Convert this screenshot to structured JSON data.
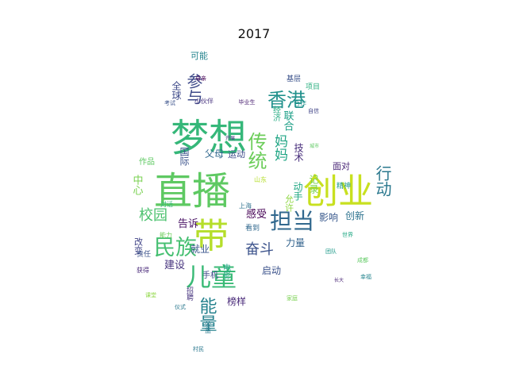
{
  "title": "2017",
  "words": [
    {
      "text": "梦想",
      "color": "#35b779"
    },
    {
      "text": "直播",
      "color": "#5ec962"
    },
    {
      "text": "创业",
      "color": "#c8e020"
    },
    {
      "text": "带",
      "color": "#b5de2b"
    },
    {
      "text": "儿童",
      "color": "#3aba76"
    },
    {
      "text": "民族",
      "color": "#44bf70"
    },
    {
      "text": "担当",
      "color": "#31688e"
    },
    {
      "text": "香港",
      "color": "#21918c"
    },
    {
      "text": "传统",
      "color": "#6ccd5a"
    },
    {
      "text": "参与",
      "color": "#3e4a89"
    },
    {
      "text": "能量",
      "color": "#26828e"
    },
    {
      "text": "奋斗",
      "color": "#3b528b"
    },
    {
      "text": "行动",
      "color": "#2a788e"
    },
    {
      "text": "校园",
      "color": "#4ac16d"
    },
    {
      "text": "妈妈",
      "color": "#21a685"
    },
    {
      "text": "父母",
      "color": "#31688e"
    },
    {
      "text": "运动",
      "color": "#3e4a89"
    },
    {
      "text": "中心",
      "color": "#7ad151"
    },
    {
      "text": "国际",
      "color": "#3b528b"
    },
    {
      "text": "全球",
      "color": "#3e4a89"
    },
    {
      "text": "可能",
      "color": "#25848e"
    },
    {
      "text": "技术",
      "color": "#472d7b"
    },
    {
      "text": "感受",
      "color": "#440154"
    },
    {
      "text": "告诉",
      "color": "#471063"
    },
    {
      "text": "就业",
      "color": "#39568c"
    },
    {
      "text": "建设",
      "color": "#46337e"
    },
    {
      "text": "影响",
      "color": "#38588c"
    },
    {
      "text": "创新",
      "color": "#2c728e"
    },
    {
      "text": "力量",
      "color": "#33638d"
    },
    {
      "text": "启动",
      "color": "#3b528b"
    },
    {
      "text": "榜样",
      "color": "#482878"
    },
    {
      "text": "面对",
      "color": "#482475"
    },
    {
      "text": "作品",
      "color": "#5ec962"
    },
    {
      "text": "改变",
      "color": "#414487"
    },
    {
      "text": "手机",
      "color": "#3e4a89"
    },
    {
      "text": "公益",
      "color": "#2a788e"
    },
    {
      "text": "联合",
      "color": "#1fa088"
    },
    {
      "text": "经济",
      "color": "#25ab82"
    },
    {
      "text": "动手",
      "color": "#22a884"
    },
    {
      "text": "项目",
      "color": "#29af7f"
    },
    {
      "text": "基层",
      "color": "#3b528b"
    },
    {
      "text": "小伙伴",
      "color": "#46327e"
    },
    {
      "text": "毕业生",
      "color": "#481f70"
    },
    {
      "text": "允许",
      "color": "#8fd744"
    },
    {
      "text": "上海",
      "color": "#2d708e"
    },
    {
      "text": "记录",
      "color": "#7ad151"
    },
    {
      "text": "责任",
      "color": "#3b528b"
    },
    {
      "text": "获得",
      "color": "#482878"
    },
    {
      "text": "对话",
      "color": "#35b779"
    },
    {
      "text": "精神",
      "color": "#1f9a8a"
    },
    {
      "text": "能力",
      "color": "#6ccd5a"
    },
    {
      "text": "看到",
      "color": "#31688e"
    },
    {
      "text": "电影",
      "color": "#22a884"
    },
    {
      "text": "村民",
      "color": "#2a788e"
    },
    {
      "text": "招聘",
      "color": "#46337e"
    },
    {
      "text": "成都",
      "color": "#5ec962"
    },
    {
      "text": "母亲",
      "color": "#440154"
    },
    {
      "text": "合作",
      "color": "#21918c"
    },
    {
      "text": "自信",
      "color": "#414487"
    },
    {
      "text": "家庭",
      "color": "#7ad151"
    },
    {
      "text": "考试",
      "color": "#3b528b"
    },
    {
      "text": "幸福",
      "color": "#25848e"
    },
    {
      "text": "山东",
      "color": "#b5de2b"
    },
    {
      "text": "仪式",
      "color": "#2a788e"
    },
    {
      "text": "长大",
      "color": "#482475"
    },
    {
      "text": "城市",
      "color": "#5ec962"
    },
    {
      "text": "开展",
      "color": "#46327e"
    },
    {
      "text": "世界",
      "color": "#22a884"
    },
    {
      "text": "团队",
      "color": "#1f9a8a"
    },
    {
      "text": "课堂",
      "color": "#8fd744"
    }
  ]
}
